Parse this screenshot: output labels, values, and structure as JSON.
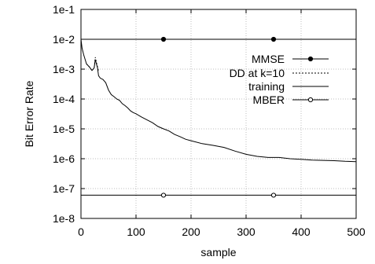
{
  "chart_data": {
    "type": "line",
    "xlabel": "sample",
    "ylabel": "Bit Error Rate",
    "xlim": [
      0,
      500
    ],
    "ylim": [
      1e-08,
      0.1
    ],
    "yscale": "log",
    "grid": true,
    "legend_position": "right",
    "x_ticks": [
      0,
      100,
      200,
      300,
      400,
      500
    ],
    "x_tick_labels": [
      "0",
      "100",
      "200",
      "300",
      "400",
      "500"
    ],
    "y_ticks": [
      0.1,
      0.01,
      0.001,
      0.0001,
      1e-05,
      1e-06,
      1e-07,
      1e-08
    ],
    "y_tick_labels": [
      "1e-1",
      "1e-2",
      "1e-3",
      "1e-4",
      "1e-5",
      "1e-6",
      "1e-7",
      "1e-8"
    ],
    "series": [
      {
        "name": "MMSE",
        "style": "solid-filled-circle",
        "x": [
          0,
          150,
          350,
          500
        ],
        "y": [
          0.01,
          0.01,
          0.01,
          0.01
        ],
        "markers_x": [
          150,
          350
        ]
      },
      {
        "name": "DD at k=10",
        "style": "dashed",
        "x": [
          10,
          15,
          20,
          24,
          26,
          28,
          30,
          32
        ],
        "y": [
          0.0015,
          0.0012,
          0.0009,
          0.0011,
          0.0025,
          0.0017,
          0.0012,
          0.00085
        ]
      },
      {
        "name": "training",
        "style": "solid",
        "x": [
          0,
          2,
          5,
          10,
          15,
          20,
          24,
          26,
          28,
          30,
          32,
          35,
          40,
          45,
          50,
          55,
          60,
          65,
          70,
          75,
          80,
          85,
          90,
          95,
          100,
          110,
          120,
          130,
          140,
          150,
          160,
          170,
          180,
          190,
          200,
          220,
          240,
          260,
          280,
          300,
          320,
          340,
          360,
          380,
          400,
          420,
          440,
          460,
          480,
          500
        ],
        "y": [
          0.01,
          0.005,
          0.003,
          0.0015,
          0.0012,
          0.0009,
          0.0011,
          0.0021,
          0.0015,
          0.0011,
          0.0006,
          0.0005,
          0.00045,
          0.00035,
          0.0002,
          0.00014,
          0.00012,
          0.0001,
          9e-05,
          7e-05,
          6e-05,
          5e-05,
          4e-05,
          3.5e-05,
          3.2e-05,
          2.5e-05,
          2e-05,
          1.6e-05,
          1.2e-05,
          1e-05,
          8.5e-06,
          6.5e-06,
          5.5e-06,
          4.5e-06,
          4e-06,
          3.2e-06,
          2.8e-06,
          2.4e-06,
          1.8e-06,
          1.4e-06,
          1.2e-06,
          1.1e-06,
          1.1e-06,
          1e-06,
          9.5e-07,
          9e-07,
          8.8e-07,
          8.6e-07,
          8.2e-07,
          8e-07
        ]
      },
      {
        "name": "MBER",
        "style": "solid-open-circle",
        "x": [
          0,
          150,
          350,
          500
        ],
        "y": [
          6e-08,
          6e-08,
          6e-08,
          6e-08
        ],
        "markers_x": [
          150,
          350
        ]
      }
    ]
  }
}
